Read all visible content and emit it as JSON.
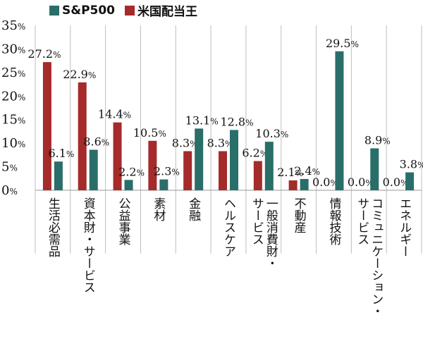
{
  "chart_data": {
    "type": "bar",
    "categories": [
      "生活必需品",
      "資本財・サービス",
      "公益事業",
      "素材",
      "金融",
      "ヘルスケア",
      "一般消費財・サービス",
      "不動産",
      "情報技術",
      "コミュニケーション・サービス",
      "エネルギー"
    ],
    "category_lines": [
      [
        "生活必需品"
      ],
      [
        "資本財・サービス"
      ],
      [
        "公益事業"
      ],
      [
        "素材"
      ],
      [
        "金融"
      ],
      [
        "ヘルスケア"
      ],
      [
        "一般消費財・",
        "サービス"
      ],
      [
        "不動産"
      ],
      [
        "情報技術"
      ],
      [
        "コミュニケーション・",
        "サービス"
      ],
      [
        "エネルギー"
      ]
    ],
    "series": [
      {
        "name": "米国配当王",
        "color": "#a52a2a",
        "values": [
          27.2,
          22.9,
          14.4,
          10.5,
          8.3,
          8.3,
          6.2,
          2.1,
          0.0,
          0.0,
          0.0
        ]
      },
      {
        "name": "S&P500",
        "color": "#2a6e6a",
        "values": [
          6.1,
          8.6,
          2.2,
          2.3,
          13.1,
          12.8,
          10.3,
          2.4,
          29.5,
          8.9,
          3.8
        ]
      }
    ],
    "legend": [
      {
        "name": "S&P500",
        "color": "#2a6e6a"
      },
      {
        "name": "米国配当王",
        "color": "#a52a2a"
      }
    ],
    "y_ticks": [
      0,
      5,
      10,
      15,
      20,
      25,
      30,
      35
    ],
    "ylim": [
      0,
      35
    ],
    "unit": "%",
    "legend_position": "top-left"
  }
}
